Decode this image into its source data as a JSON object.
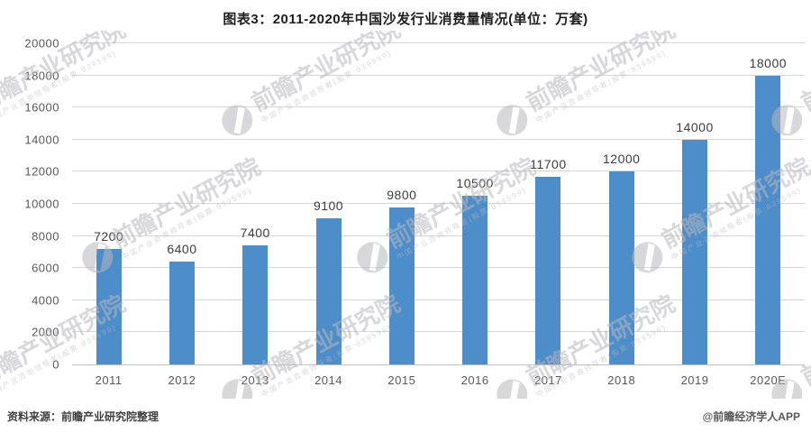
{
  "title": "图表3：2011-2020年中国沙发行业消费量情况(单位：万套)",
  "footer": {
    "source": "资料来源：前瞻产业研究院整理",
    "credit": "@前瞻经济学人APP"
  },
  "watermark": {
    "text": "前瞻产业研究院",
    "subtext": "中国产业咨询领导者(股票:839599)"
  },
  "colors": {
    "bar": "#4d8dc9",
    "gridline": "#d6d6d6",
    "axis_text": "#595959",
    "value_label_text": "#3d3d3d"
  },
  "chart_data": {
    "type": "bar",
    "title": "图表3：2011-2020年中国沙发行业消费量情况(单位：万套)",
    "categories": [
      "2011",
      "2012",
      "2013",
      "2014",
      "2015",
      "2016",
      "2017",
      "2018",
      "2019",
      "2020E"
    ],
    "values": [
      7200,
      6400,
      7400,
      9100,
      9800,
      10500,
      11700,
      12000,
      14000,
      18000
    ],
    "unit": "万套",
    "xlabel": "",
    "ylabel": "",
    "ylim": [
      0,
      20000
    ],
    "y_ticks": [
      0,
      2000,
      4000,
      6000,
      8000,
      10000,
      12000,
      14000,
      16000,
      18000,
      20000
    ],
    "grid": true,
    "legend": false,
    "value_labels": true
  }
}
